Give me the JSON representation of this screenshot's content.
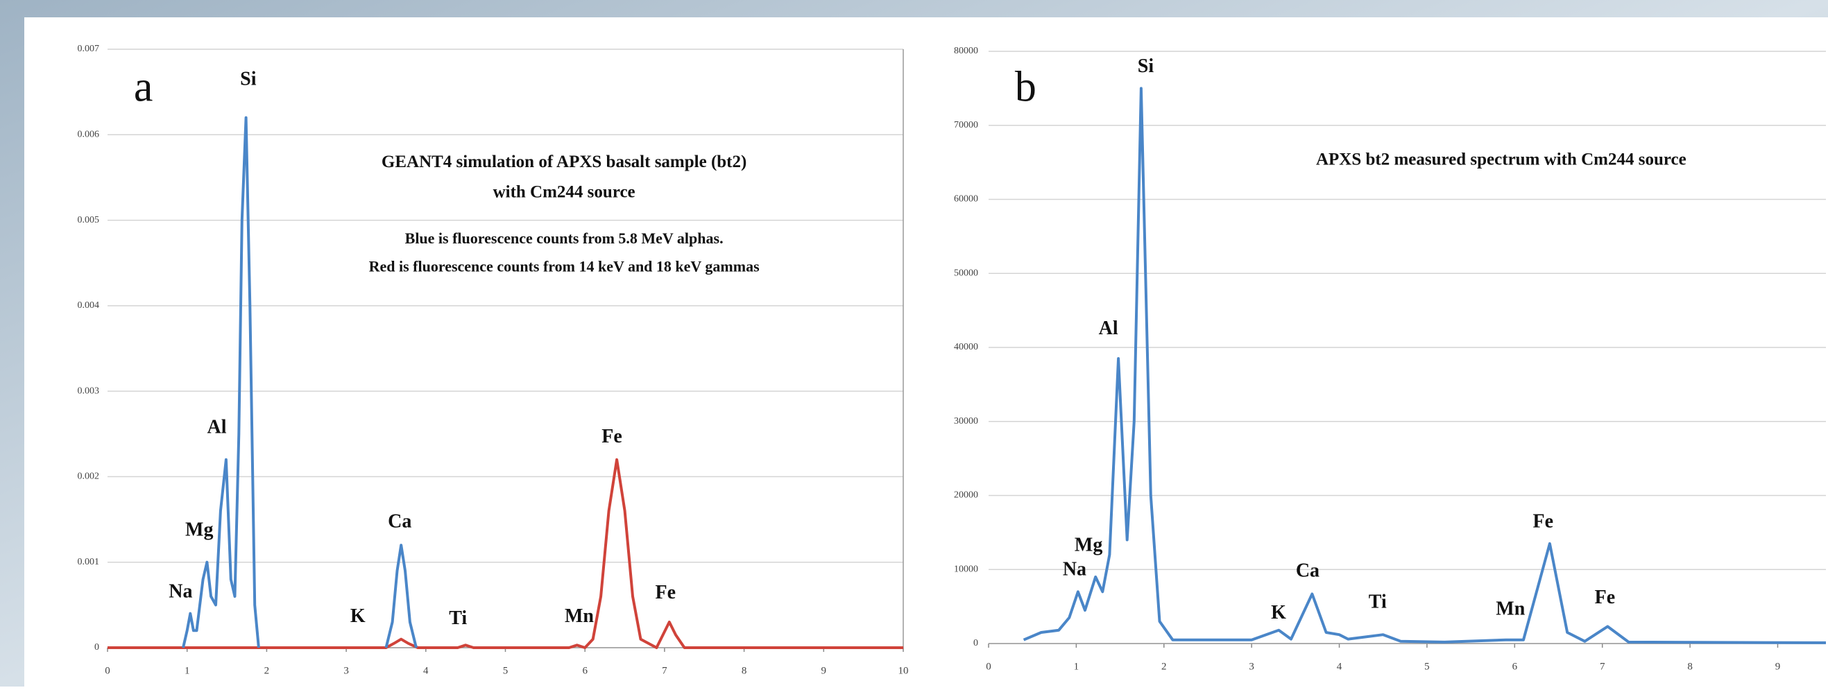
{
  "chart_data": [
    {
      "type": "line",
      "panel_label": "a",
      "title": "GEANT4 simulation of APXS basalt sample (bt2)",
      "subtitle": "with Cm244 source",
      "notes": [
        "Blue is fluorescence counts from 5.8 MeV alphas.",
        "Red is fluorescence counts from 14 keV and 18 keV gammas"
      ],
      "peak_labels": [
        "Na",
        "Mg",
        "Al",
        "Si",
        "K",
        "Ca",
        "Ti",
        "Mn",
        "Fe",
        "Fe"
      ],
      "xlim": [
        0,
        10
      ],
      "xticks": [
        0,
        1,
        2,
        3,
        4,
        5,
        6,
        7,
        8,
        9,
        10
      ],
      "ylim": [
        0,
        0.007
      ],
      "yticks": [
        0,
        0.001,
        0.002,
        0.003,
        0.004,
        0.005,
        0.006,
        0.007
      ],
      "grid": true,
      "series": [
        {
          "color": "#d0433a",
          "x": [
            0,
            3.5,
            3.6,
            3.69,
            3.78,
            3.9,
            4.4,
            4.5,
            4.6,
            5.8,
            5.9,
            6.0,
            6.1,
            6.2,
            6.3,
            6.4,
            6.5,
            6.6,
            6.7,
            6.9,
            6.98,
            7.06,
            7.14,
            7.25,
            10
          ],
          "values": [
            0,
            0,
            5e-05,
            0.0001,
            5e-05,
            0,
            0,
            3e-05,
            0,
            0,
            3e-05,
            0,
            0.0001,
            0.0006,
            0.0016,
            0.0022,
            0.0016,
            0.0006,
            0.0001,
            0,
            0.00015,
            0.0003,
            0.00015,
            0,
            0
          ]
        },
        {
          "color": "#4a86c8",
          "x": [
            0.95,
            1.0,
            1.04,
            1.08,
            1.12,
            1.2,
            1.25,
            1.3,
            1.36,
            1.42,
            1.49,
            1.55,
            1.6,
            1.65,
            1.69,
            1.74,
            1.79,
            1.85,
            1.9,
            2.5,
            3.5,
            3.58,
            3.64,
            3.69,
            3.74,
            3.8,
            3.88
          ],
          "values": [
            0,
            0.0002,
            0.0004,
            0.0002,
            0.0002,
            0.0008,
            0.001,
            0.0006,
            0.0005,
            0.0016,
            0.0022,
            0.0008,
            0.0006,
            0.0025,
            0.005,
            0.0062,
            0.004,
            0.0005,
            0,
            null,
            0,
            0.0003,
            0.0009,
            0.0012,
            0.0009,
            0.0003,
            0
          ]
        }
      ]
    },
    {
      "type": "line",
      "panel_label": "b",
      "title": "APXS bt2 measured spectrum with Cm244 source",
      "peak_labels": [
        "Si",
        "Al",
        "Mg",
        "Na",
        "K",
        "Ca",
        "Ti",
        "Mn",
        "Fe",
        "Fe"
      ],
      "xlim": [
        0,
        9.55
      ],
      "xticks": [
        0,
        1,
        2,
        3,
        4,
        5,
        6,
        7,
        8,
        9
      ],
      "ylim": [
        0,
        80000
      ],
      "yticks": [
        0,
        10000,
        20000,
        30000,
        40000,
        50000,
        60000,
        70000,
        80000
      ],
      "grid": true,
      "series": [
        {
          "color": "#4a86c8",
          "x": [
            0.4,
            0.6,
            0.8,
            0.92,
            1.02,
            1.1,
            1.22,
            1.3,
            1.38,
            1.48,
            1.58,
            1.66,
            1.74,
            1.85,
            1.95,
            2.1,
            3.0,
            3.31,
            3.45,
            3.69,
            3.85,
            4.0,
            4.1,
            4.5,
            4.7,
            5.2,
            5.9,
            6.1,
            6.4,
            6.6,
            6.8,
            7.06,
            7.3,
            9.55
          ],
          "values": [
            500,
            1500,
            1800,
            3500,
            7000,
            4500,
            9000,
            7000,
            12000,
            38500,
            14000,
            30000,
            75000,
            20000,
            3000,
            500,
            500,
            1800,
            600,
            6700,
            1500,
            1200,
            600,
            1200,
            300,
            200,
            500,
            500,
            13500,
            1500,
            300,
            2300,
            200,
            100
          ]
        }
      ]
    }
  ]
}
